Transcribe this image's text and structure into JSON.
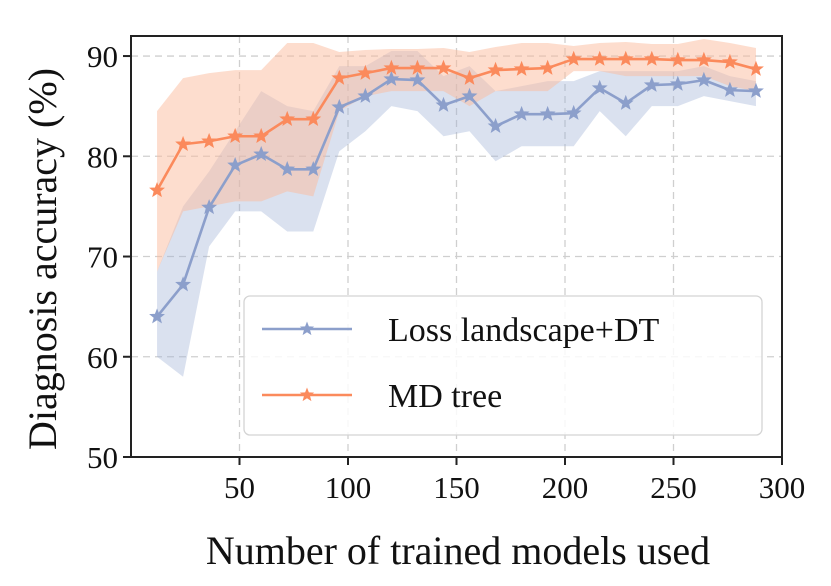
{
  "chart_data": {
    "type": "line",
    "title": "",
    "xlabel": "Number of trained models used",
    "ylabel": "Diagnosis accuracy (%)",
    "xlim": [
      0,
      300
    ],
    "ylim": [
      50,
      92
    ],
    "xticks": [
      50,
      100,
      150,
      200,
      250,
      300
    ],
    "yticks": [
      50,
      60,
      70,
      80,
      90
    ],
    "grid": true,
    "legend_position": "lower-right",
    "x": [
      12,
      24,
      36,
      48,
      60,
      72,
      84,
      96,
      108,
      120,
      132,
      144,
      156,
      168,
      180,
      192,
      204,
      216,
      228,
      240,
      252,
      264,
      276,
      288
    ],
    "series": [
      {
        "name": "Loss landscape+DT",
        "color": "#8c9fcb",
        "fill_color": "#9fb0d6",
        "marker": "star",
        "values": [
          64.0,
          67.2,
          74.9,
          79.1,
          80.2,
          78.7,
          78.7,
          84.9,
          86.0,
          87.7,
          87.6,
          85.1,
          86.0,
          83.0,
          84.2,
          84.2,
          84.3,
          86.8,
          85.3,
          87.1,
          87.2,
          87.6,
          86.6,
          86.5
        ],
        "lower": [
          60.0,
          58.0,
          71.0,
          74.5,
          74.5,
          72.5,
          72.5,
          80.5,
          82.5,
          85.0,
          84.5,
          82.0,
          82.5,
          79.5,
          81.0,
          81.0,
          81.0,
          84.5,
          82.0,
          85.0,
          85.0,
          86.0,
          85.5,
          85.0
        ],
        "upper": [
          68.5,
          75.0,
          78.5,
          82.5,
          86.5,
          85.0,
          84.5,
          89.0,
          89.0,
          90.5,
          90.5,
          88.0,
          89.0,
          86.5,
          87.0,
          87.5,
          87.5,
          88.5,
          88.5,
          88.5,
          88.5,
          89.0,
          88.0,
          87.5
        ]
      },
      {
        "name": "MD tree",
        "color": "#fb8a5c",
        "fill_color": "#fcbc9e",
        "marker": "star",
        "values": [
          76.6,
          81.2,
          81.5,
          82.0,
          82.0,
          83.7,
          83.7,
          87.8,
          88.3,
          88.8,
          88.8,
          88.8,
          87.8,
          88.6,
          88.7,
          88.8,
          89.7,
          89.7,
          89.7,
          89.7,
          89.6,
          89.6,
          89.4,
          88.7
        ],
        "lower": [
          68.5,
          74.5,
          75.0,
          75.5,
          75.5,
          76.5,
          76.0,
          84.5,
          86.0,
          86.5,
          86.5,
          86.5,
          85.0,
          86.5,
          86.5,
          86.5,
          88.5,
          88.5,
          88.0,
          88.0,
          88.0,
          88.0,
          87.0,
          86.5
        ],
        "upper": [
          84.5,
          87.8,
          88.3,
          88.6,
          88.6,
          91.3,
          91.3,
          90.4,
          90.6,
          90.7,
          90.7,
          90.8,
          90.4,
          90.9,
          91.3,
          91.3,
          91.0,
          91.3,
          91.4,
          91.2,
          91.2,
          91.7,
          91.3,
          90.8
        ]
      }
    ]
  }
}
